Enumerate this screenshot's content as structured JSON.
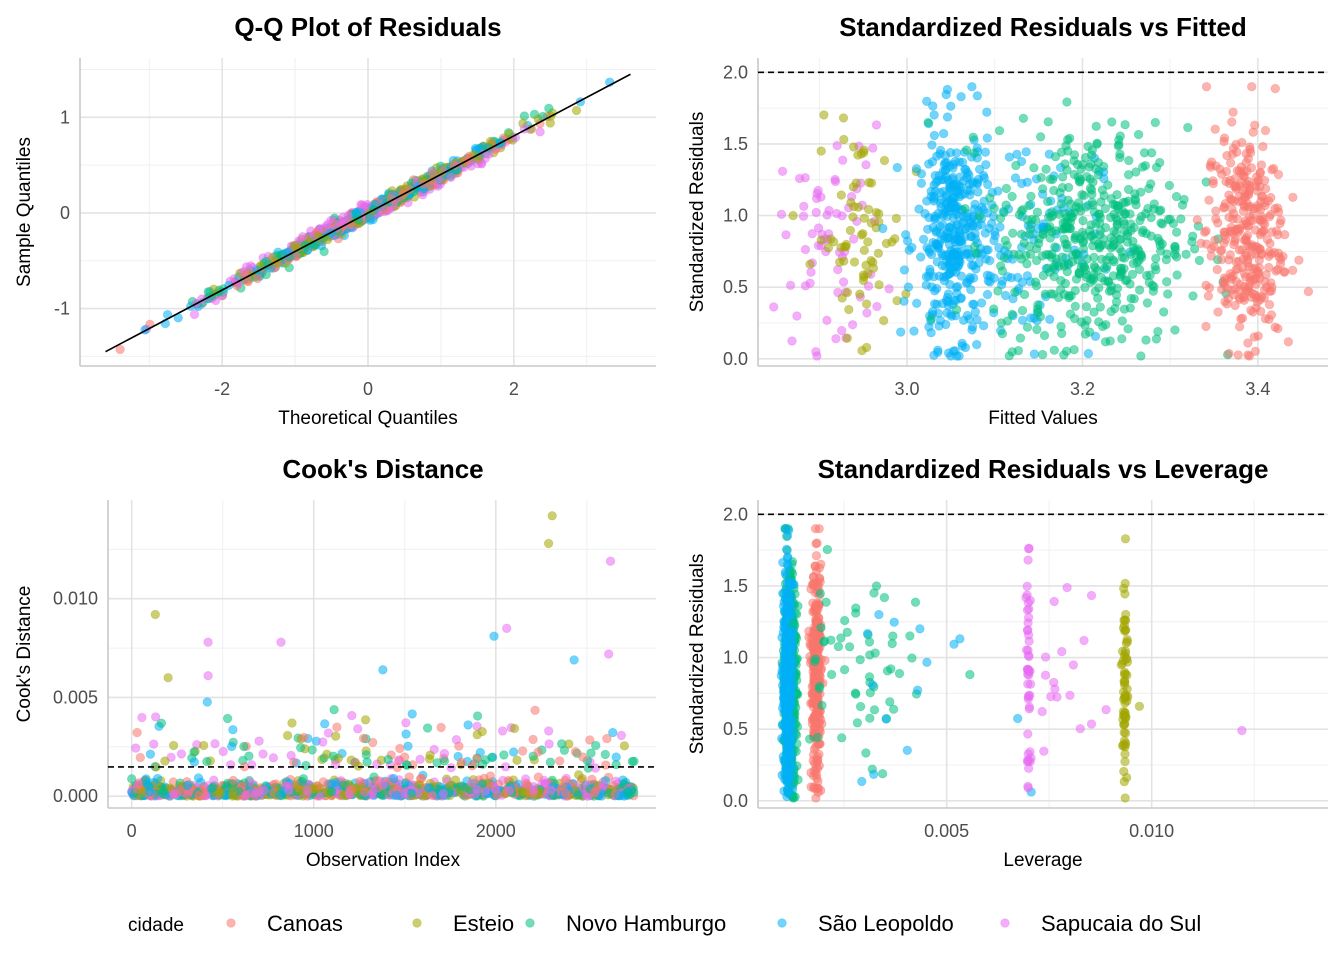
{
  "colors": {
    "Canoas": "#F8766D",
    "Esteio": "#A3A500",
    "Novo Hamburgo": "#00BF7D",
    "São Leopoldo": "#00B0F6",
    "Sapucaia do Sul": "#E76BF3"
  },
  "legend": {
    "title": "cidade",
    "placement": "bottom",
    "items": [
      "Canoas",
      "Esteio",
      "Novo Hamburgo",
      "São Leopoldo",
      "Sapucaia do Sul"
    ]
  },
  "chart_data": [
    {
      "type": "scatter",
      "title": "Q-Q Plot of Residuals",
      "xlabel": "Theoretical Quantiles",
      "ylabel": "Sample Quantiles",
      "xlim": [
        -3.95,
        3.95
      ],
      "ylim": [
        -1.6,
        1.62
      ],
      "xticks": [
        -2,
        0,
        2
      ],
      "xtick_labels": [
        "-2",
        "0",
        "2"
      ],
      "yticks": [
        -1,
        0,
        1
      ],
      "ytick_labels": [
        "-1",
        "0",
        "1"
      ],
      "reference_line": {
        "x": [
          -3.6,
          3.6
        ],
        "y": [
          -1.45,
          1.45
        ]
      },
      "grid": true
    },
    {
      "type": "scatter",
      "title": "Standardized Residuals vs Fitted",
      "xlabel": "Fitted Values",
      "ylabel": "Standardized Residuals",
      "xlim": [
        2.83,
        3.48
      ],
      "ylim": [
        -0.05,
        2.1
      ],
      "xticks": [
        3.0,
        3.2,
        3.4
      ],
      "xtick_labels": [
        "3.0",
        "3.2",
        "3.4"
      ],
      "yticks": [
        0,
        0.5,
        1.0,
        1.5,
        2.0
      ],
      "ytick_labels": [
        "0.0",
        "0.5",
        "1.0",
        "1.5",
        "2.0"
      ],
      "hline": 2.0,
      "grid": true
    },
    {
      "type": "scatter",
      "title": "Cook's Distance",
      "xlabel": "Observation Index",
      "ylabel": "Cook's Distance",
      "xlim": [
        -130,
        2880
      ],
      "ylim": [
        -0.0006,
        0.015
      ],
      "xticks": [
        0,
        1000,
        2000
      ],
      "xtick_labels": [
        "0",
        "1000",
        "2000"
      ],
      "yticks": [
        0,
        0.005,
        0.01
      ],
      "ytick_labels": [
        "0.000",
        "0.005",
        "0.010"
      ],
      "hline": 0.00148,
      "grid": true
    },
    {
      "type": "scatter",
      "title": "Standardized Residuals vs Leverage",
      "xlabel": "Leverage",
      "ylabel": "Standardized Residuals",
      "xlim": [
        0.0004,
        0.0143
      ],
      "ylim": [
        -0.05,
        2.1
      ],
      "xticks": [
        0.005,
        0.01
      ],
      "xtick_labels": [
        "0.005",
        "0.010"
      ],
      "yticks": [
        0,
        0.5,
        1.0,
        1.5,
        2.0
      ],
      "ytick_labels": [
        "0.0",
        "0.5",
        "1.0",
        "1.5",
        "2.0"
      ],
      "hline": 2.0,
      "grid": true
    }
  ]
}
